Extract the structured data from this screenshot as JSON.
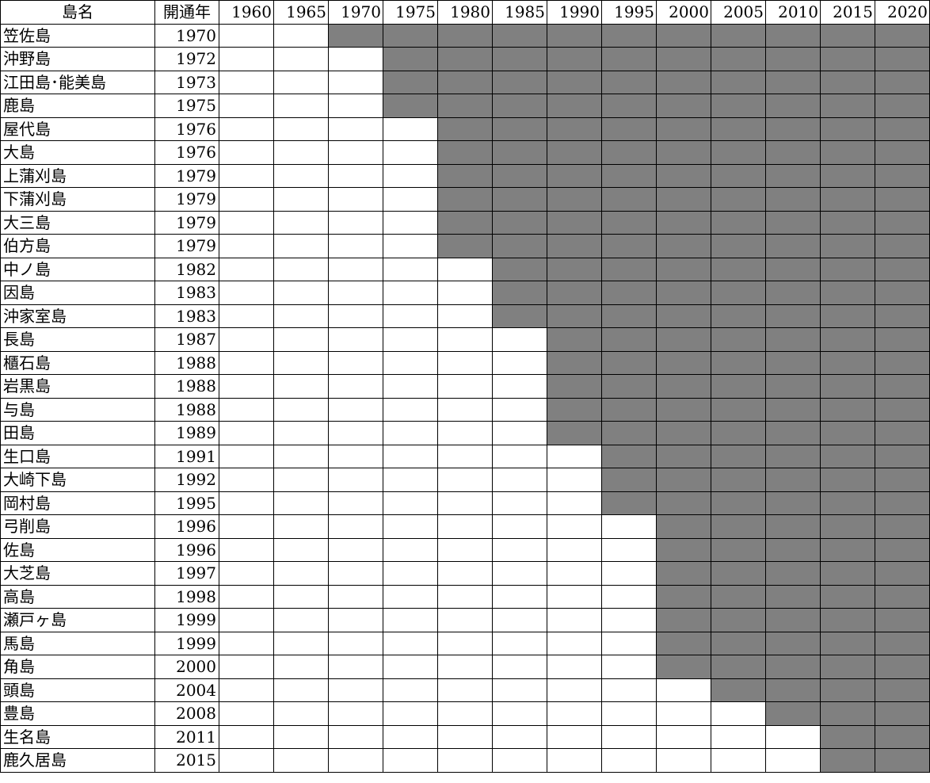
{
  "chart_data": {
    "type": "table",
    "columns": {
      "name": "島名",
      "opened": "開通年"
    },
    "periods": [
      "1960",
      "1965",
      "1970",
      "1975",
      "1980",
      "1985",
      "1990",
      "1995",
      "2000",
      "2005",
      "2010",
      "2015",
      "2020"
    ],
    "rows": [
      {
        "name": "笠佐島",
        "year": "1970",
        "start": 1970
      },
      {
        "name": "沖野島",
        "year": "1972",
        "start": 1975
      },
      {
        "name": "江田島･能美島",
        "year": "1973",
        "start": 1975
      },
      {
        "name": "鹿島",
        "year": "1975",
        "start": 1975
      },
      {
        "name": "屋代島",
        "year": "1976",
        "start": 1980
      },
      {
        "name": "大島",
        "year": "1976",
        "start": 1980
      },
      {
        "name": "上蒲刈島",
        "year": "1979",
        "start": 1980
      },
      {
        "name": "下蒲刈島",
        "year": "1979",
        "start": 1980
      },
      {
        "name": "大三島",
        "year": "1979",
        "start": 1980
      },
      {
        "name": "伯方島",
        "year": "1979",
        "start": 1980
      },
      {
        "name": "中ノ島",
        "year": "1982",
        "start": 1985
      },
      {
        "name": "因島",
        "year": "1983",
        "start": 1985
      },
      {
        "name": "沖家室島",
        "year": "1983",
        "start": 1985
      },
      {
        "name": "長島",
        "year": "1987",
        "start": 1990
      },
      {
        "name": "櫃石島",
        "year": "1988",
        "start": 1990
      },
      {
        "name": "岩黒島",
        "year": "1988",
        "start": 1990
      },
      {
        "name": "与島",
        "year": "1988",
        "start": 1990
      },
      {
        "name": "田島",
        "year": "1989",
        "start": 1990
      },
      {
        "name": "生口島",
        "year": "1991",
        "start": 1995
      },
      {
        "name": "大崎下島",
        "year": "1992",
        "start": 1995
      },
      {
        "name": "岡村島",
        "year": "1995",
        "start": 1995
      },
      {
        "name": "弓削島",
        "year": "1996",
        "start": 2000
      },
      {
        "name": "佐島",
        "year": "1996",
        "start": 2000
      },
      {
        "name": "大芝島",
        "year": "1997",
        "start": 2000
      },
      {
        "name": "高島",
        "year": "1998",
        "start": 2000
      },
      {
        "name": "瀬戸ヶ島",
        "year": "1999",
        "start": 2000
      },
      {
        "name": "馬島",
        "year": "1999",
        "start": 2000
      },
      {
        "name": "角島",
        "year": "2000",
        "start": 2000
      },
      {
        "name": "頭島",
        "year": "2004",
        "start": 2005
      },
      {
        "name": "豊島",
        "year": "2008",
        "start": 2010
      },
      {
        "name": "生名島",
        "year": "2011",
        "start": 2015
      },
      {
        "name": "鹿久居島",
        "year": "2015",
        "start": 2015
      }
    ]
  },
  "colors": {
    "connected": "#808080",
    "not_connected": "#ffffff"
  }
}
